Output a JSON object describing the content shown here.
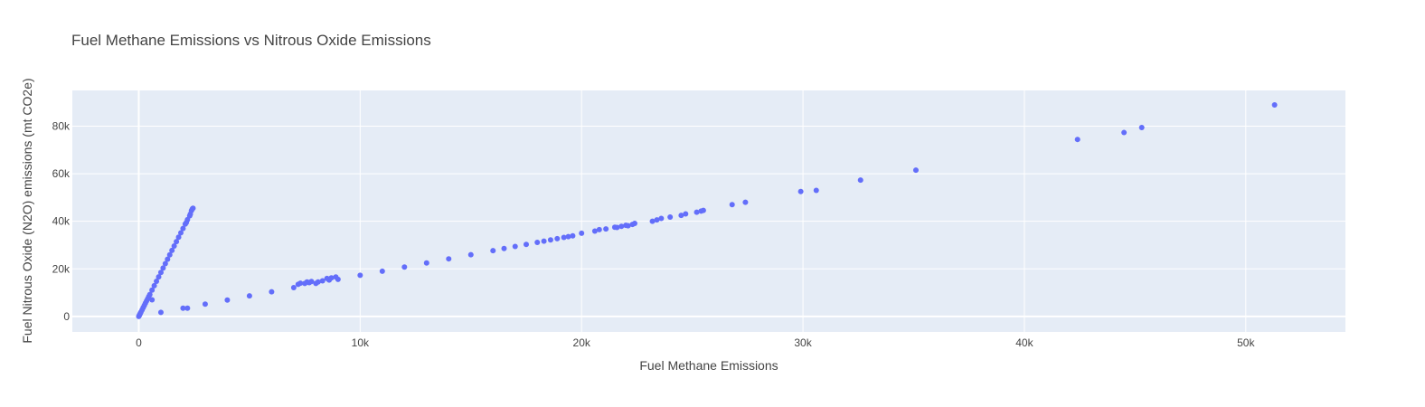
{
  "chart_data": {
    "type": "scatter",
    "title": "Fuel Methane Emissions vs Nitrous Oxide Emissions",
    "xlabel": "Fuel Methane Emissions",
    "ylabel": "Fuel Nitrous Oxide (N2O) emissions (mt CO2e)",
    "xlim": [
      -3000,
      54500
    ],
    "ylim": [
      -6500,
      95000
    ],
    "x_ticks": [
      0,
      10000,
      20000,
      30000,
      40000,
      50000
    ],
    "x_tick_labels": [
      "0",
      "10k",
      "20k",
      "30k",
      "40k",
      "50k"
    ],
    "y_ticks": [
      0,
      20000,
      40000,
      60000,
      80000
    ],
    "y_tick_labels": [
      "0",
      "20k",
      "40k",
      "60k",
      "80k"
    ],
    "grid": true,
    "plot_bg": "#e5ecf6",
    "marker_color": "#636efa",
    "series": [
      {
        "x": [
          0,
          20,
          40,
          60,
          80,
          100,
          150,
          200,
          250,
          300,
          350,
          400,
          450,
          500,
          600,
          700,
          800,
          900,
          1000,
          1100,
          1200,
          1300,
          1400,
          1500,
          1600,
          1700,
          1800,
          1900,
          2000,
          2100,
          2150,
          2200,
          2300,
          2330,
          2380,
          2420,
          2450,
          600,
          2200,
          1000,
          2000,
          3000,
          4000,
          5000,
          6000,
          7000,
          7200,
          7300,
          7500,
          7600,
          7700,
          7800,
          8000,
          8100,
          8300,
          8500,
          8600,
          8700,
          8900,
          9000,
          10000,
          11000,
          12000,
          13000,
          14000,
          15000,
          16000,
          16500,
          17000,
          17500,
          18000,
          18300,
          18600,
          18900,
          19200,
          19400,
          19600,
          20000,
          20600,
          20800,
          21100,
          21500,
          21600,
          21800,
          22000,
          22100,
          22300,
          22400,
          23200,
          23400,
          23600,
          24000,
          24500,
          24700,
          25200,
          25400,
          25500,
          26800,
          27400,
          29900,
          30600,
          32600,
          35100,
          42400,
          44500,
          45300,
          51300
        ],
        "y": [
          0,
          370,
          740,
          1110,
          1480,
          1850,
          2775,
          3700,
          4625,
          5550,
          6475,
          7400,
          8325,
          9250,
          11100,
          12950,
          14800,
          16650,
          18500,
          20350,
          22200,
          24050,
          25900,
          27750,
          29600,
          31450,
          33300,
          35150,
          37000,
          38850,
          39500,
          40700,
          42300,
          43000,
          44500,
          45200,
          45500,
          7000,
          3500,
          1730,
          3460,
          5190,
          6920,
          8650,
          10380,
          12110,
          13500,
          14000,
          13900,
          14500,
          14200,
          14700,
          13900,
          14500,
          15000,
          16000,
          15300,
          16200,
          16600,
          15600,
          17300,
          19030,
          20760,
          22490,
          24220,
          25950,
          27680,
          28550,
          29410,
          30280,
          31140,
          31660,
          32180,
          32700,
          33220,
          33560,
          33910,
          35000,
          35900,
          36500,
          36800,
          37500,
          37400,
          37900,
          38300,
          38100,
          38700,
          39100,
          40000,
          40600,
          41200,
          41800,
          42500,
          43100,
          43800,
          44300,
          44600,
          47000,
          48000,
          52500,
          53000,
          57300,
          61500,
          74400,
          77300,
          79400,
          88900
        ]
      }
    ]
  }
}
